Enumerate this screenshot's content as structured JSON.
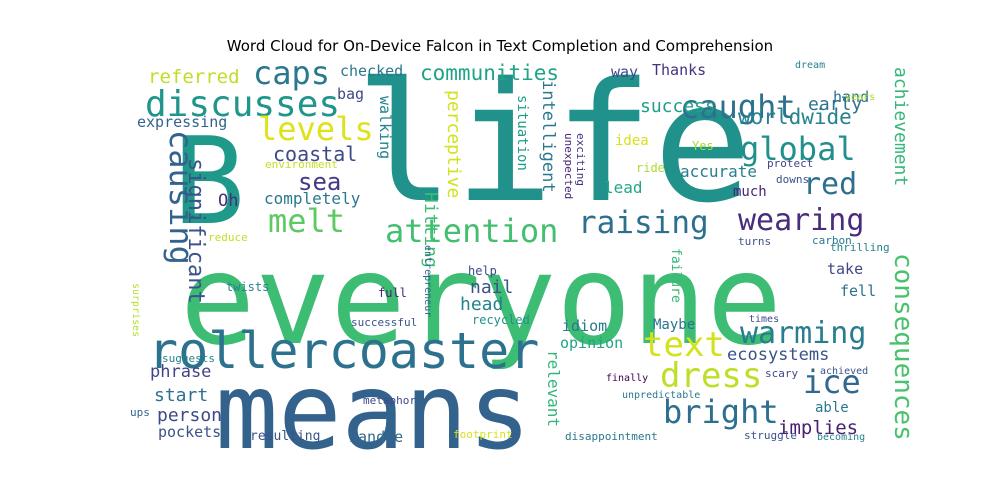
{
  "chart_data": {
    "type": "wordcloud",
    "title": "Word Cloud for On-Device Falcon in Text Completion and Comprehension",
    "background": "#ffffff",
    "colormap": "viridis",
    "words": [
      {
        "text": "life",
        "color": "#21918c"
      },
      {
        "text": "everyone",
        "color": "#3dbc74"
      },
      {
        "text": "means",
        "color": "#33638d"
      },
      {
        "text": "B",
        "color": "#1f9a8a"
      },
      {
        "text": "rollercoaster",
        "color": "#2c728e"
      },
      {
        "text": "discusses",
        "color": "#1f968b"
      },
      {
        "text": "attention",
        "color": "#44bf70"
      },
      {
        "text": "raising",
        "color": "#2d708e"
      },
      {
        "text": "caught",
        "color": "#2c728e"
      },
      {
        "text": "wearing",
        "color": "#472d7b"
      },
      {
        "text": "global",
        "color": "#21908d"
      },
      {
        "text": "warming",
        "color": "#287d8e"
      },
      {
        "text": "melt",
        "color": "#5ec962"
      },
      {
        "text": "levels",
        "color": "#dde318"
      },
      {
        "text": "caps",
        "color": "#2a788e"
      },
      {
        "text": "red",
        "color": "#2d708e"
      },
      {
        "text": "causing",
        "color": "#33638d"
      },
      {
        "text": "text",
        "color": "#d2e21b"
      },
      {
        "text": "dress",
        "color": "#bddf26"
      },
      {
        "text": "bright",
        "color": "#2e6e8e"
      },
      {
        "text": "ice",
        "color": "#31688e"
      },
      {
        "text": "consequences",
        "color": "#4ac16d"
      },
      {
        "text": "sea",
        "color": "#443a83"
      },
      {
        "text": "significant",
        "color": "#3b528b"
      },
      {
        "text": "worldwide",
        "color": "#26828e"
      },
      {
        "text": "achievement",
        "color": "#35b779"
      },
      {
        "text": "communities",
        "color": "#20a486"
      },
      {
        "text": "coastal",
        "color": "#3e4989"
      },
      {
        "text": "referred",
        "color": "#bddf26"
      },
      {
        "text": "ecosystems",
        "color": "#3b528b"
      },
      {
        "text": "success",
        "color": "#1f9e89"
      },
      {
        "text": "early",
        "color": "#2c728e"
      },
      {
        "text": "implies",
        "color": "#481f70"
      },
      {
        "text": "Hitting",
        "color": "#3dbc74"
      },
      {
        "text": "perceptive",
        "color": "#d2e21b"
      },
      {
        "text": "intelligent",
        "color": "#2a788e"
      },
      {
        "text": "head",
        "color": "#26828e"
      },
      {
        "text": "person",
        "color": "#3e4989"
      },
      {
        "text": "nail",
        "color": "#3b528b"
      },
      {
        "text": "completely",
        "color": "#2a788e"
      },
      {
        "text": "Oh",
        "color": "#472d7b"
      },
      {
        "text": "start",
        "color": "#2c728e"
      },
      {
        "text": "phrase",
        "color": "#414487"
      },
      {
        "text": "accurate",
        "color": "#277f8e"
      },
      {
        "text": "lead",
        "color": "#22a785"
      },
      {
        "text": "relevant",
        "color": "#35b779"
      },
      {
        "text": "expressing",
        "color": "#33638d"
      },
      {
        "text": "checked",
        "color": "#2a788e"
      },
      {
        "text": "walking",
        "color": "#26828e"
      },
      {
        "text": "situation",
        "color": "#1f9e89"
      },
      {
        "text": "Thanks",
        "color": "#46327e"
      },
      {
        "text": "way",
        "color": "#3e4989"
      },
      {
        "text": "bag",
        "color": "#3e4989"
      },
      {
        "text": "hand",
        "color": "#2d708e"
      },
      {
        "text": "handle",
        "color": "#31688e"
      },
      {
        "text": "pockets",
        "color": "#3b528b"
      },
      {
        "text": "opinion",
        "color": "#20a486"
      },
      {
        "text": "idiom",
        "color": "#2a788e"
      },
      {
        "text": "Maybe",
        "color": "#2c728e"
      },
      {
        "text": "fell",
        "color": "#2c728e"
      },
      {
        "text": "take",
        "color": "#404688"
      },
      {
        "text": "able",
        "color": "#2a788e"
      },
      {
        "text": "much",
        "color": "#482576"
      },
      {
        "text": "idea",
        "color": "#d8e219"
      },
      {
        "text": "resulting",
        "color": "#3b528b"
      },
      {
        "text": "years",
        "color": "#a8db34"
      },
      {
        "text": "dream",
        "color": "#26828e"
      },
      {
        "text": "protect",
        "color": "#414487"
      },
      {
        "text": "downs",
        "color": "#3b528b"
      },
      {
        "text": "Yes",
        "color": "#a8db34"
      },
      {
        "text": "ride",
        "color": "#addc30"
      },
      {
        "text": "unexpected",
        "color": "#482576"
      },
      {
        "text": "exciting",
        "color": "#46327e"
      },
      {
        "text": "environment",
        "color": "#c2df23"
      },
      {
        "text": "reduce",
        "color": "#c2df23"
      },
      {
        "text": "turns",
        "color": "#3b528b"
      },
      {
        "text": "carbon",
        "color": "#2a788e"
      },
      {
        "text": "thrilling",
        "color": "#26828e"
      },
      {
        "text": "help",
        "color": "#3e4989"
      },
      {
        "text": "entrepreneur",
        "color": "#33638d"
      },
      {
        "text": "failure",
        "color": "#35b779"
      },
      {
        "text": "full",
        "color": "#482576"
      },
      {
        "text": "twists",
        "color": "#26828e"
      },
      {
        "text": "surprises",
        "color": "#b5de2b"
      },
      {
        "text": "successful",
        "color": "#3b528b"
      },
      {
        "text": "recycled",
        "color": "#21908d"
      },
      {
        "text": "times",
        "color": "#3e4989"
      },
      {
        "text": "suggests",
        "color": "#26828e"
      },
      {
        "text": "finally",
        "color": "#440154"
      },
      {
        "text": "achieved",
        "color": "#3b528b"
      },
      {
        "text": "scary",
        "color": "#3e4989"
      },
      {
        "text": "unpredictable",
        "color": "#2a788e"
      },
      {
        "text": "metaphor",
        "color": "#3e4989"
      },
      {
        "text": "ups",
        "color": "#33638d"
      },
      {
        "text": "footprint",
        "color": "#d8e219"
      },
      {
        "text": "disappointment",
        "color": "#2a788e"
      },
      {
        "text": "struggle",
        "color": "#3b528b"
      },
      {
        "text": "becoming",
        "color": "#26828e"
      }
    ]
  }
}
